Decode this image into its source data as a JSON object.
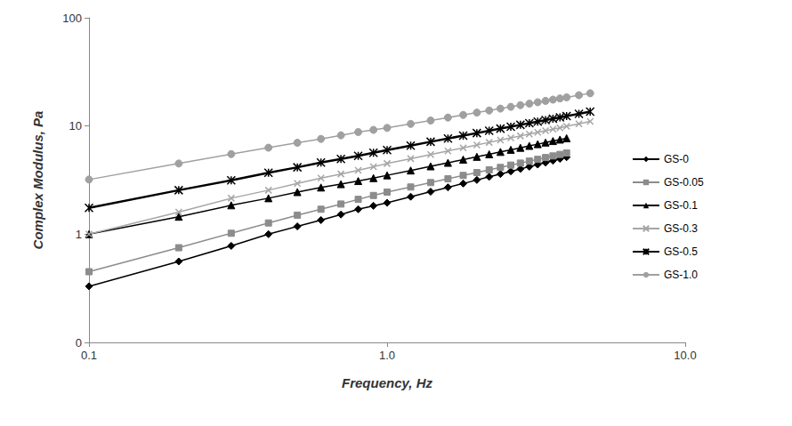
{
  "chart_data": {
    "type": "line",
    "x_label": "Frequency, Hz",
    "y_label": "Complex Modulus, Pa",
    "log": true,
    "grid": false,
    "legend": "right",
    "xlim": [
      0.1,
      10
    ],
    "xticks": [
      0.1,
      {
        "value": 1,
        "label": "1.0"
      },
      {
        "value": 10,
        "label": "10.0"
      }
    ],
    "ylim": [
      0.1,
      100
    ],
    "yticks": [
      {
        "value": 0.1,
        "label": "0"
      },
      1,
      10,
      100
    ],
    "x": [
      0.1,
      0.2,
      0.3,
      0.4,
      0.5,
      0.6,
      0.7,
      0.8,
      0.9,
      1.0,
      1.2,
      1.4,
      1.6,
      1.8,
      2.0,
      2.2,
      2.4,
      2.6,
      2.8,
      3.0,
      3.2,
      3.4,
      3.6,
      3.8,
      4.0,
      4.4,
      4.8
    ],
    "series": [
      {
        "name": "GS-0",
        "color": "#000000",
        "marker": "diamond",
        "line_style": "solid",
        "values": [
          0.33,
          0.56,
          0.78,
          1.0,
          1.18,
          1.35,
          1.52,
          1.7,
          1.83,
          1.95,
          2.22,
          2.47,
          2.71,
          2.94,
          3.17,
          3.39,
          3.6,
          3.81,
          4.01,
          4.21,
          4.4,
          4.59,
          4.78,
          4.97,
          5.15,
          null,
          null
        ]
      },
      {
        "name": "GS-0.05",
        "color": "#8c8c8c",
        "marker": "square",
        "line_style": "solid",
        "values": [
          0.45,
          0.75,
          1.02,
          1.27,
          1.5,
          1.7,
          1.9,
          2.1,
          2.28,
          2.45,
          2.73,
          3.0,
          3.25,
          3.49,
          3.71,
          3.93,
          4.14,
          4.35,
          4.54,
          4.74,
          4.92,
          5.11,
          5.29,
          5.46,
          5.63,
          null,
          null
        ]
      },
      {
        "name": "GS-0.1",
        "color": "#000000",
        "marker": "triangle",
        "line_style": "solid",
        "values": [
          1.0,
          1.45,
          1.85,
          2.15,
          2.45,
          2.7,
          2.9,
          3.1,
          3.3,
          3.5,
          3.88,
          4.24,
          4.57,
          4.89,
          5.19,
          5.48,
          5.76,
          6.03,
          6.29,
          6.55,
          6.79,
          7.03,
          7.26,
          7.49,
          7.71,
          null,
          null
        ]
      },
      {
        "name": "GS-0.3",
        "color": "#a6a6a6",
        "marker": "x",
        "line_style": "solid",
        "values": [
          1.0,
          1.6,
          2.15,
          2.55,
          2.95,
          3.3,
          3.6,
          3.9,
          4.2,
          4.5,
          4.99,
          5.45,
          5.88,
          6.29,
          6.68,
          7.05,
          7.41,
          7.76,
          8.09,
          8.42,
          8.73,
          9.04,
          9.34,
          9.63,
          9.92,
          10.48,
          11.01
        ]
      },
      {
        "name": "GS-0.5",
        "color": "#000000",
        "marker": "asterisk",
        "line_style": "solid",
        "values": [
          1.75,
          2.55,
          3.15,
          3.7,
          4.15,
          4.6,
          4.95,
          5.3,
          5.65,
          6.0,
          6.59,
          7.15,
          7.66,
          8.15,
          8.6,
          9.04,
          9.46,
          9.86,
          10.25,
          10.63,
          10.99,
          11.34,
          11.68,
          12.01,
          12.34,
          12.97,
          13.57
        ]
      },
      {
        "name": "GS-1.0",
        "color": "#a0a0a0",
        "marker": "circle",
        "line_style": "solid",
        "values": [
          3.2,
          4.5,
          5.5,
          6.3,
          7.0,
          7.6,
          8.2,
          8.8,
          9.2,
          9.6,
          10.45,
          11.24,
          11.97,
          12.65,
          13.3,
          13.9,
          14.48,
          15.04,
          15.58,
          16.09,
          16.58,
          17.07,
          17.53,
          17.98,
          18.41,
          19.26,
          20.06
        ]
      }
    ]
  }
}
